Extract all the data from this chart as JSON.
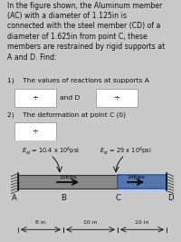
{
  "title_text": "In the figure shown, the Aluminum member\n(AC) with a diameter of 1.125in is\nconnected with the steel member (CD) of a\ndiameter of 1.625in from point C, these\nmembers are restrained by rigid supports at\nA and D. Find:",
  "q1_text": "1)    The values of reactions at supports A",
  "q1_and": "and D",
  "q2_text": "2)    The deformation at point C (δ)",
  "box_symbol": "÷",
  "eal_text": "E_al = 10.4 x 10^6psi",
  "est_text": "E_st = 29 x 10^6psi",
  "load1": "15Kips",
  "load2": "14Kips",
  "dim1": "8 in",
  "dim2": "10 in",
  "dim3": "10 in",
  "text_bg": "#c8c8c8",
  "diag_bg": "#a8b8c8",
  "bar_al_color": "#888888",
  "bar_st_color": "#5577aa",
  "bar_st_edge": "#3355aa",
  "support_hatch": "#555555",
  "white": "#ffffff",
  "black": "#000000",
  "dark_text": "#111111"
}
